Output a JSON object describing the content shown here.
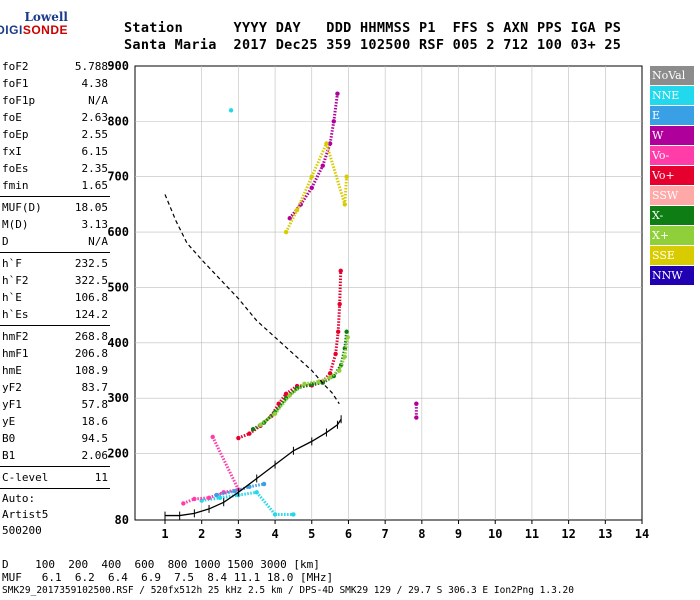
{
  "logo": {
    "line1": "Lowell",
    "line2a": "DIGI",
    "line2b": "SONDE"
  },
  "header": {
    "line1": "Station      YYYY DAY   DDD HHMMSS P1  FFS S AXN PPS IGA PS",
    "line2": "Santa Maria  2017 Dec25 359 102500 RSF 005 2 712 100 03+ 25"
  },
  "params": {
    "group1": [
      {
        "k": "foF2",
        "v": "5.788"
      },
      {
        "k": "foF1",
        "v": "4.38"
      },
      {
        "k": "foF1p",
        "v": "N/A"
      },
      {
        "k": "foE",
        "v": "2.63"
      },
      {
        "k": "foEp",
        "v": "2.55"
      },
      {
        "k": "fxI",
        "v": "6.15"
      },
      {
        "k": "foEs",
        "v": "2.35"
      },
      {
        "k": "fmin",
        "v": "1.65"
      }
    ],
    "group2": [
      {
        "k": "MUF(D)",
        "v": "18.05"
      },
      {
        "k": "M(D)",
        "v": "3.13"
      },
      {
        "k": "D",
        "v": "N/A"
      }
    ],
    "group3": [
      {
        "k": "h`F",
        "v": "232.5"
      },
      {
        "k": "h`F2",
        "v": "322.5"
      },
      {
        "k": "h`E",
        "v": "106.8"
      },
      {
        "k": "h`Es",
        "v": "124.2"
      }
    ],
    "group4": [
      {
        "k": "hmF2",
        "v": "268.8"
      },
      {
        "k": "hmF1",
        "v": "206.8"
      },
      {
        "k": "hmE",
        "v": "108.9"
      },
      {
        "k": "yF2",
        "v": "83.7"
      },
      {
        "k": "yF1",
        "v": "57.8"
      },
      {
        "k": "yE",
        "v": "18.6"
      },
      {
        "k": "B0",
        "v": "94.5"
      },
      {
        "k": "B1",
        "v": "2.06"
      }
    ],
    "group5": [
      {
        "k": "C-level",
        "v": "11"
      }
    ],
    "auto1": "Auto:",
    "auto2": "Artist5",
    "auto3": "500200"
  },
  "legend": [
    {
      "label": "NoVal",
      "color": "#8c8c8c"
    },
    {
      "label": "NNE",
      "color": "#22d8ec"
    },
    {
      "label": "E",
      "color": "#3aa0e6"
    },
    {
      "label": "W",
      "color": "#b0009c"
    },
    {
      "label": "Vo-",
      "color": "#ff3ca8"
    },
    {
      "label": "Vo+",
      "color": "#e6002e"
    },
    {
      "label": "SSW",
      "color": "#ffa8a8"
    },
    {
      "label": "X-",
      "color": "#0e7d14"
    },
    {
      "label": "X+",
      "color": "#8fd03a"
    },
    {
      "label": "SSE",
      "color": "#d8cc00"
    },
    {
      "label": "NNW",
      "color": "#2000b0"
    }
  ],
  "bottom": {
    "d_line": "D    100  200  400  600  800 1000 1500 3000 [km]",
    "muf_line": "MUF   6.1  6.2  6.4  6.9  7.5  8.4 11.1 18.0 [MHz]"
  },
  "footer": "SMK29_2017359102500.RSF / 520fx512h 25 kHz 2.5 km / DPS-4D SMK29 129 / 29.7 S 306.3 E Ion2Png 1.3.20",
  "chart_data": {
    "type": "scatter",
    "xlim": [
      1,
      14
    ],
    "ylim": [
      80,
      900
    ],
    "x_ticks": [
      1,
      2,
      3,
      4,
      5,
      6,
      7,
      8,
      9,
      10,
      11,
      12,
      13,
      14
    ],
    "y_ticks": [
      80,
      200,
      300,
      400,
      500,
      600,
      700,
      800,
      900
    ],
    "grid": true,
    "series": [
      {
        "name": "Vo+",
        "color": "#e6002e",
        "points": [
          [
            3.0,
            228
          ],
          [
            3.3,
            236
          ],
          [
            3.6,
            250
          ],
          [
            3.9,
            268
          ],
          [
            4.1,
            290
          ],
          [
            4.3,
            308
          ],
          [
            4.6,
            322
          ],
          [
            5.0,
            323
          ],
          [
            5.3,
            330
          ],
          [
            5.5,
            345
          ],
          [
            5.65,
            380
          ],
          [
            5.72,
            420
          ],
          [
            5.76,
            470
          ],
          [
            5.79,
            530
          ]
        ]
      },
      {
        "name": "X-",
        "color": "#0e7d14",
        "points": [
          [
            3.4,
            244
          ],
          [
            3.7,
            256
          ],
          [
            4.0,
            275
          ],
          [
            4.3,
            300
          ],
          [
            4.6,
            318
          ],
          [
            5.0,
            325
          ],
          [
            5.3,
            328
          ],
          [
            5.6,
            340
          ],
          [
            5.8,
            360
          ],
          [
            5.9,
            390
          ],
          [
            5.95,
            420
          ]
        ]
      },
      {
        "name": "X+",
        "color": "#8fd03a",
        "points": [
          [
            3.6,
            252
          ],
          [
            4.0,
            272
          ],
          [
            4.4,
            305
          ],
          [
            4.8,
            326
          ],
          [
            5.2,
            330
          ],
          [
            5.5,
            338
          ],
          [
            5.75,
            350
          ],
          [
            5.9,
            375
          ],
          [
            5.98,
            410
          ]
        ]
      },
      {
        "name": "W",
        "color": "#b0009c",
        "points": [
          [
            4.4,
            625
          ],
          [
            4.7,
            650
          ],
          [
            5.0,
            680
          ],
          [
            5.3,
            720
          ],
          [
            5.5,
            760
          ],
          [
            5.6,
            800
          ],
          [
            5.7,
            850
          ],
          [
            7.85,
            265
          ],
          [
            7.85,
            290
          ]
        ]
      },
      {
        "name": "SSE",
        "color": "#d8cc00",
        "points": [
          [
            4.3,
            600
          ],
          [
            4.6,
            640
          ],
          [
            5.0,
            700
          ],
          [
            5.4,
            760
          ],
          [
            5.9,
            650
          ],
          [
            5.95,
            700
          ]
        ]
      },
      {
        "name": "NNE",
        "color": "#22d8ec",
        "points": [
          [
            2.0,
            115
          ],
          [
            2.5,
            120
          ],
          [
            3.0,
            125
          ],
          [
            3.5,
            130
          ],
          [
            4.0,
            90
          ],
          [
            4.5,
            90
          ],
          [
            2.8,
            820
          ]
        ]
      },
      {
        "name": "Vo-",
        "color": "#ff3ca8",
        "points": [
          [
            1.5,
            110
          ],
          [
            1.8,
            118
          ],
          [
            2.2,
            120
          ],
          [
            2.6,
            130
          ],
          [
            3.0,
            135
          ],
          [
            2.3,
            230
          ]
        ]
      },
      {
        "name": "E",
        "color": "#3aa0e6",
        "points": [
          [
            2.4,
            125
          ],
          [
            2.9,
            132
          ],
          [
            3.3,
            140
          ],
          [
            3.7,
            145
          ]
        ]
      }
    ],
    "profile_dashed": [
      [
        1.0,
        668
      ],
      [
        1.3,
        620
      ],
      [
        1.6,
        580
      ],
      [
        2.0,
        550
      ],
      [
        2.5,
        515
      ],
      [
        3.0,
        480
      ],
      [
        3.5,
        440
      ],
      [
        4.0,
        410
      ],
      [
        4.5,
        380
      ],
      [
        5.0,
        350
      ],
      [
        5.3,
        327
      ],
      [
        5.55,
        310
      ],
      [
        5.75,
        290
      ]
    ],
    "profile_solid": [
      [
        1.0,
        88
      ],
      [
        1.4,
        88
      ],
      [
        1.8,
        92
      ],
      [
        2.2,
        100
      ],
      [
        2.6,
        112
      ],
      [
        3.0,
        130
      ],
      [
        3.5,
        155
      ],
      [
        4.0,
        180
      ],
      [
        4.5,
        205
      ],
      [
        5.0,
        222
      ],
      [
        5.4,
        238
      ],
      [
        5.7,
        252
      ],
      [
        5.8,
        262
      ]
    ]
  }
}
